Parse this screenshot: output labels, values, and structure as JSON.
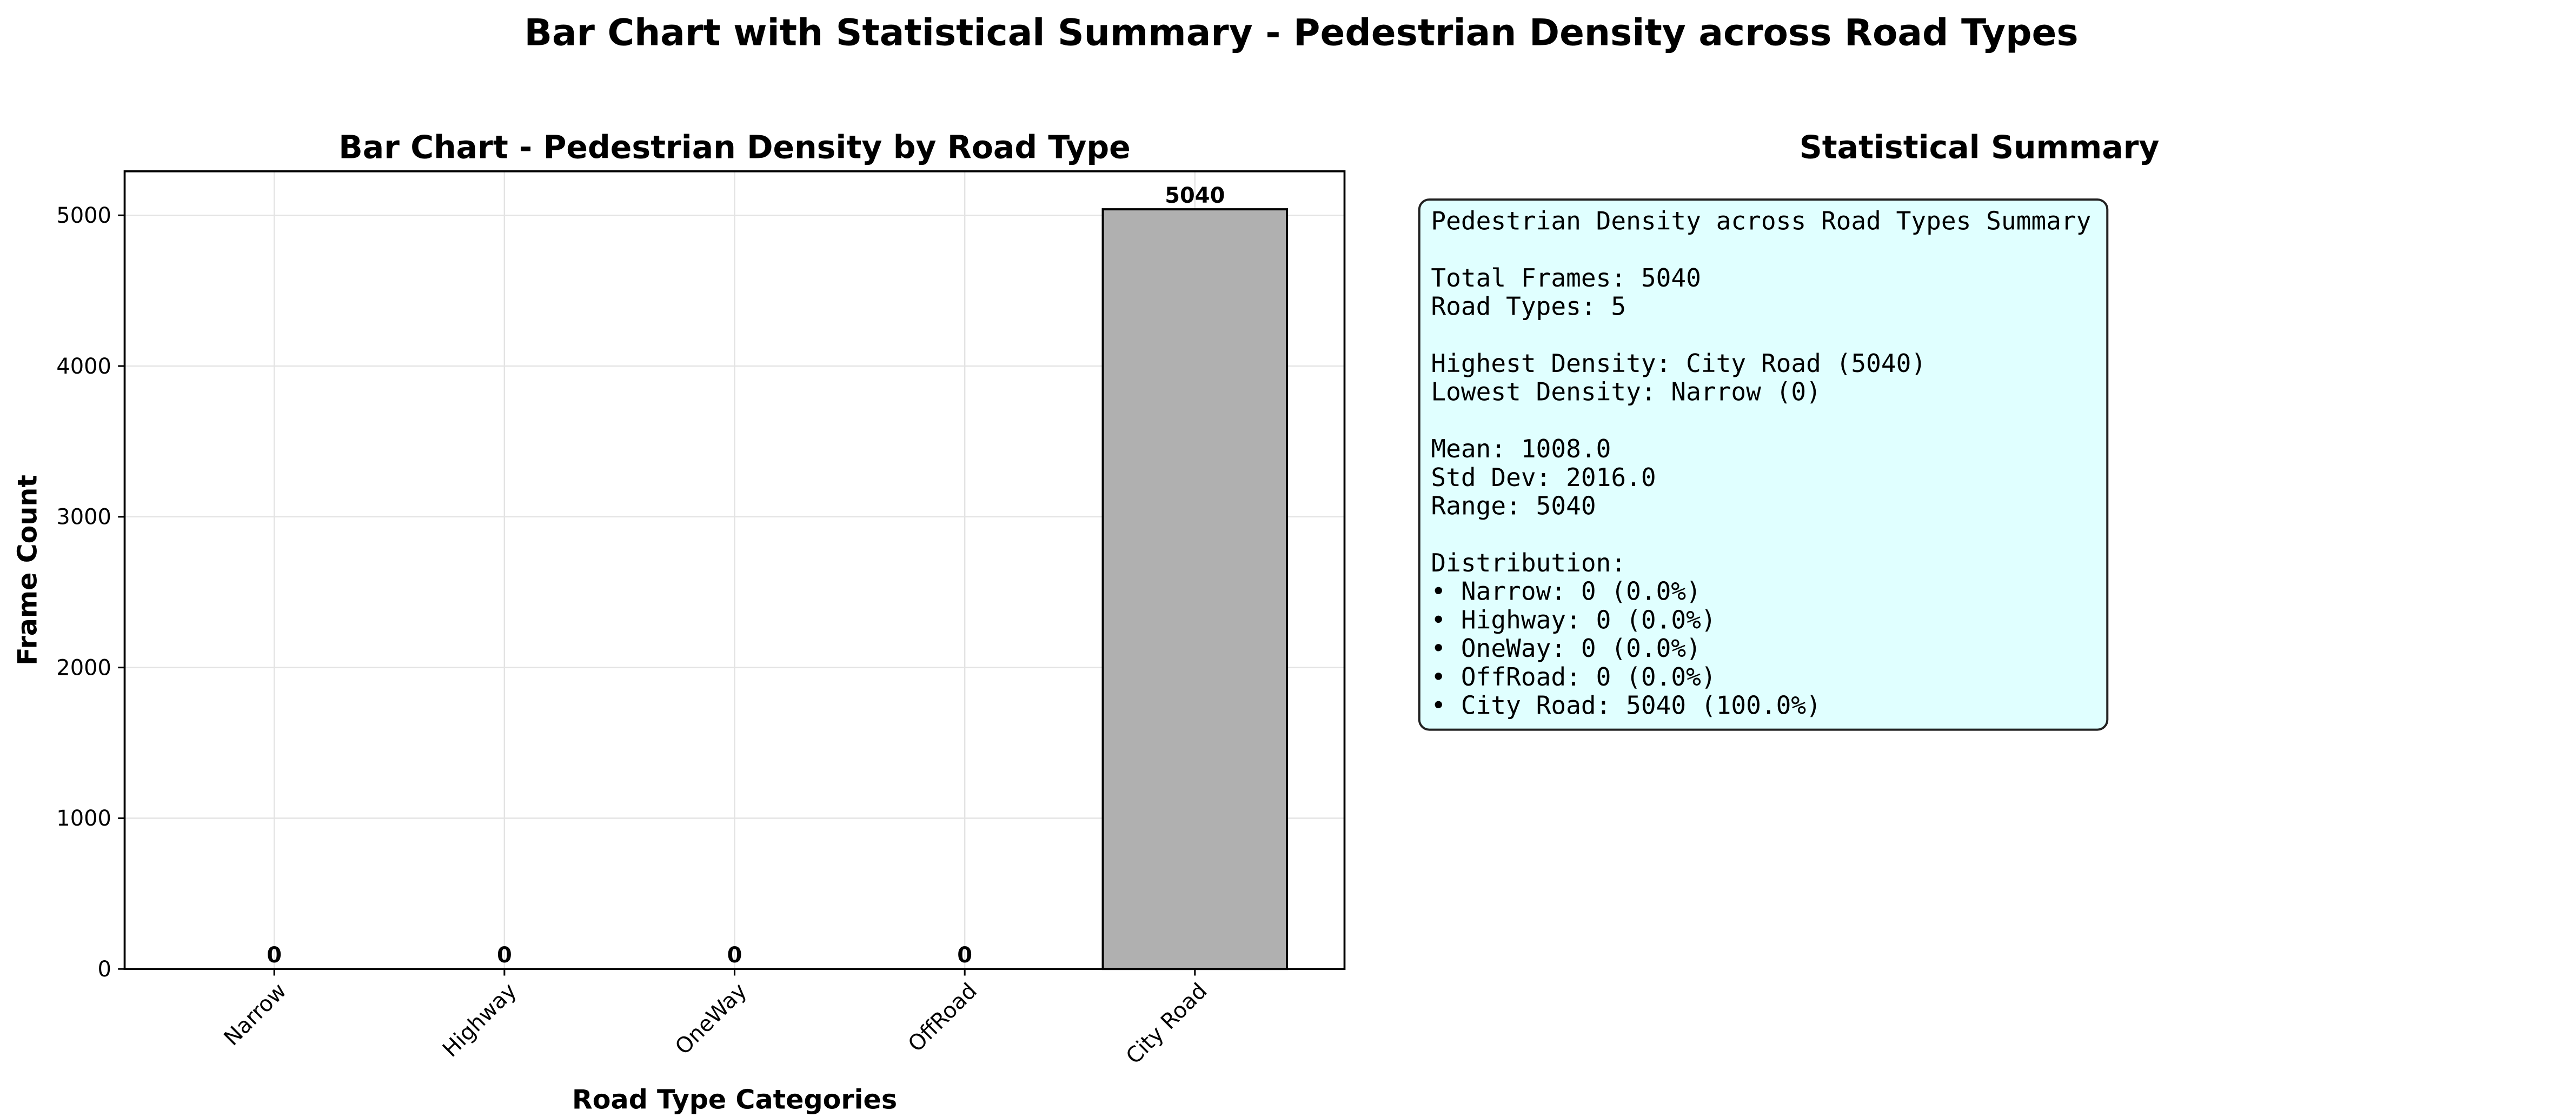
{
  "title": "Bar Chart with Statistical Summary - Pedestrian Density across Road Types",
  "chart_data": {
    "type": "bar",
    "title": "Bar Chart - Pedestrian Density by Road Type",
    "categories": [
      "Narrow",
      "Highway",
      "OneWay",
      "OffRoad",
      "City Road"
    ],
    "values": [
      0,
      0,
      0,
      0,
      5040
    ],
    "color": "#b0b0b0",
    "edgecolor": "#000000",
    "xlabel": "Road Type Categories",
    "ylabel": "Frame Count",
    "ylim": [
      0,
      5292
    ],
    "yticks": [
      0,
      1000,
      2000,
      3000,
      4000,
      5000
    ],
    "grid": true
  },
  "summary": {
    "title": "Statistical Summary",
    "groups": [
      [
        "Pedestrian Density across Road Types Summary"
      ],
      [
        "Total Frames: 5040",
        "Road Types: 5"
      ],
      [
        "Highest Density: City Road (5040)",
        "Lowest Density: Narrow (0)"
      ],
      [
        "Mean: 1008.0",
        "Std Dev: 2016.0",
        "Range: 5040"
      ],
      [
        "Distribution:",
        "• Narrow: 0 (0.0%)",
        "• Highway: 0 (0.0%)",
        "• OneWay: 0 (0.0%)",
        "• OffRoad: 0 (0.0%)",
        "• City Road: 5040 (100.0%)"
      ]
    ]
  }
}
